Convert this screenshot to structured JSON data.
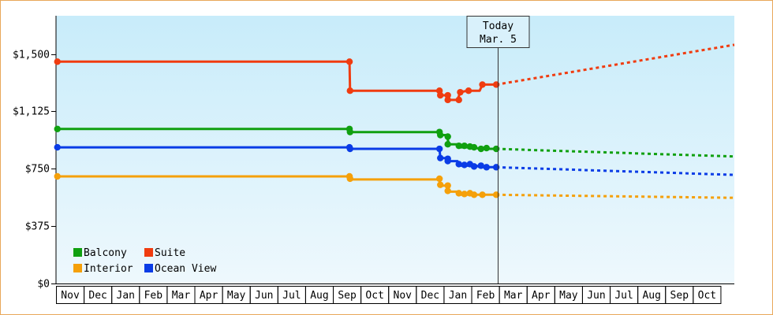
{
  "chart_data": {
    "type": "line",
    "title": "",
    "xlabel": "",
    "ylabel": "",
    "ylim": [
      0,
      1750
    ],
    "y_ticks": [
      0,
      375,
      750,
      1125,
      1500
    ],
    "y_tick_labels": [
      "$0",
      "$375",
      "$750",
      "$1,125",
      "$1,500"
    ],
    "x_range": [
      0,
      24.5
    ],
    "x_tick_labels": [
      "Nov",
      "Dec",
      "Jan",
      "Feb",
      "Mar",
      "Apr",
      "May",
      "Jun",
      "Jul",
      "Aug",
      "Sep",
      "Oct",
      "Nov",
      "Dec",
      "Jan",
      "Feb",
      "Mar",
      "Apr",
      "May",
      "Jun",
      "Jul",
      "Aug",
      "Sep",
      "Oct"
    ],
    "grid": false,
    "legend_position": "bottom-left",
    "today": {
      "line1": "Today",
      "line2": "Mar. 5",
      "x": 15.95
    },
    "colors": {
      "Balcony": "#10a010",
      "Suite": "#f03c10",
      "Interior": "#f5a00a",
      "Ocean View": "#0a3ce6",
      "plot_top": "#c8ecfa",
      "plot_bottom": "#eef8fd",
      "border": "#e8a75a"
    },
    "legend": [
      {
        "name": "Balcony",
        "color": "#10a010"
      },
      {
        "name": "Suite",
        "color": "#f03c10"
      },
      {
        "name": "Interior",
        "color": "#f5a00a"
      },
      {
        "name": "Ocean View",
        "color": "#0a3ce6"
      }
    ],
    "series": [
      {
        "name": "Suite",
        "color": "#f03c10",
        "points": [
          [
            0.05,
            1450
          ],
          [
            10.6,
            1450
          ],
          [
            10.62,
            1260
          ],
          [
            13.85,
            1260
          ],
          [
            13.88,
            1230
          ],
          [
            14.1,
            1230
          ],
          [
            14.2,
            1200
          ],
          [
            14.5,
            1200
          ],
          [
            14.6,
            1250
          ],
          [
            14.85,
            1260
          ],
          [
            15.3,
            1260
          ],
          [
            15.4,
            1300
          ],
          [
            15.9,
            1300
          ]
        ],
        "markers": [
          [
            0.05,
            1450
          ],
          [
            10.6,
            1450
          ],
          [
            10.62,
            1260
          ],
          [
            13.85,
            1260
          ],
          [
            13.88,
            1230
          ],
          [
            14.15,
            1230
          ],
          [
            14.15,
            1200
          ],
          [
            14.55,
            1200
          ],
          [
            14.6,
            1250
          ],
          [
            14.9,
            1260
          ],
          [
            15.4,
            1300
          ],
          [
            15.9,
            1300
          ]
        ],
        "forecast": [
          [
            15.9,
            1300
          ],
          [
            24.5,
            1560
          ]
        ]
      },
      {
        "name": "Balcony",
        "color": "#10a010",
        "points": [
          [
            0.05,
            1010
          ],
          [
            10.6,
            1010
          ],
          [
            10.62,
            990
          ],
          [
            13.85,
            990
          ],
          [
            13.88,
            970
          ],
          [
            14.1,
            970
          ],
          [
            14.2,
            910
          ],
          [
            14.5,
            910
          ],
          [
            14.6,
            890
          ],
          [
            15.1,
            890
          ],
          [
            15.3,
            880
          ],
          [
            15.9,
            880
          ]
        ],
        "markers": [
          [
            0.05,
            1010
          ],
          [
            10.6,
            1010
          ],
          [
            10.62,
            990
          ],
          [
            13.85,
            990
          ],
          [
            13.88,
            970
          ],
          [
            14.15,
            960
          ],
          [
            14.15,
            910
          ],
          [
            14.55,
            900
          ],
          [
            14.75,
            900
          ],
          [
            14.95,
            895
          ],
          [
            15.1,
            890
          ],
          [
            15.35,
            880
          ],
          [
            15.55,
            885
          ],
          [
            15.9,
            880
          ]
        ],
        "forecast": [
          [
            15.9,
            880
          ],
          [
            24.5,
            830
          ]
        ]
      },
      {
        "name": "Ocean View",
        "color": "#0a3ce6",
        "points": [
          [
            0.05,
            890
          ],
          [
            10.6,
            890
          ],
          [
            10.62,
            880
          ],
          [
            13.85,
            880
          ],
          [
            13.88,
            820
          ],
          [
            14.1,
            820
          ],
          [
            14.2,
            800
          ],
          [
            14.5,
            800
          ],
          [
            14.6,
            770
          ],
          [
            15.2,
            770
          ],
          [
            15.3,
            760
          ],
          [
            15.9,
            760
          ]
        ],
        "markers": [
          [
            0.05,
            890
          ],
          [
            10.6,
            890
          ],
          [
            10.62,
            880
          ],
          [
            13.85,
            880
          ],
          [
            13.88,
            820
          ],
          [
            14.15,
            815
          ],
          [
            14.15,
            800
          ],
          [
            14.55,
            780
          ],
          [
            14.75,
            775
          ],
          [
            14.95,
            780
          ],
          [
            15.1,
            765
          ],
          [
            15.35,
            770
          ],
          [
            15.55,
            760
          ],
          [
            15.9,
            760
          ]
        ],
        "forecast": [
          [
            15.9,
            760
          ],
          [
            24.5,
            710
          ]
        ]
      },
      {
        "name": "Interior",
        "color": "#f5a00a",
        "points": [
          [
            0.05,
            700
          ],
          [
            10.6,
            700
          ],
          [
            10.62,
            680
          ],
          [
            13.85,
            680
          ],
          [
            13.88,
            640
          ],
          [
            14.1,
            640
          ],
          [
            14.2,
            600
          ],
          [
            14.5,
            600
          ],
          [
            14.6,
            580
          ],
          [
            15.9,
            580
          ]
        ],
        "markers": [
          [
            0.05,
            700
          ],
          [
            10.6,
            700
          ],
          [
            10.62,
            685
          ],
          [
            13.85,
            685
          ],
          [
            13.88,
            645
          ],
          [
            14.15,
            640
          ],
          [
            14.15,
            605
          ],
          [
            14.55,
            590
          ],
          [
            14.75,
            585
          ],
          [
            14.95,
            590
          ],
          [
            15.1,
            580
          ],
          [
            15.4,
            580
          ],
          [
            15.9,
            580
          ]
        ],
        "forecast": [
          [
            15.9,
            580
          ],
          [
            24.5,
            560
          ]
        ]
      }
    ]
  }
}
